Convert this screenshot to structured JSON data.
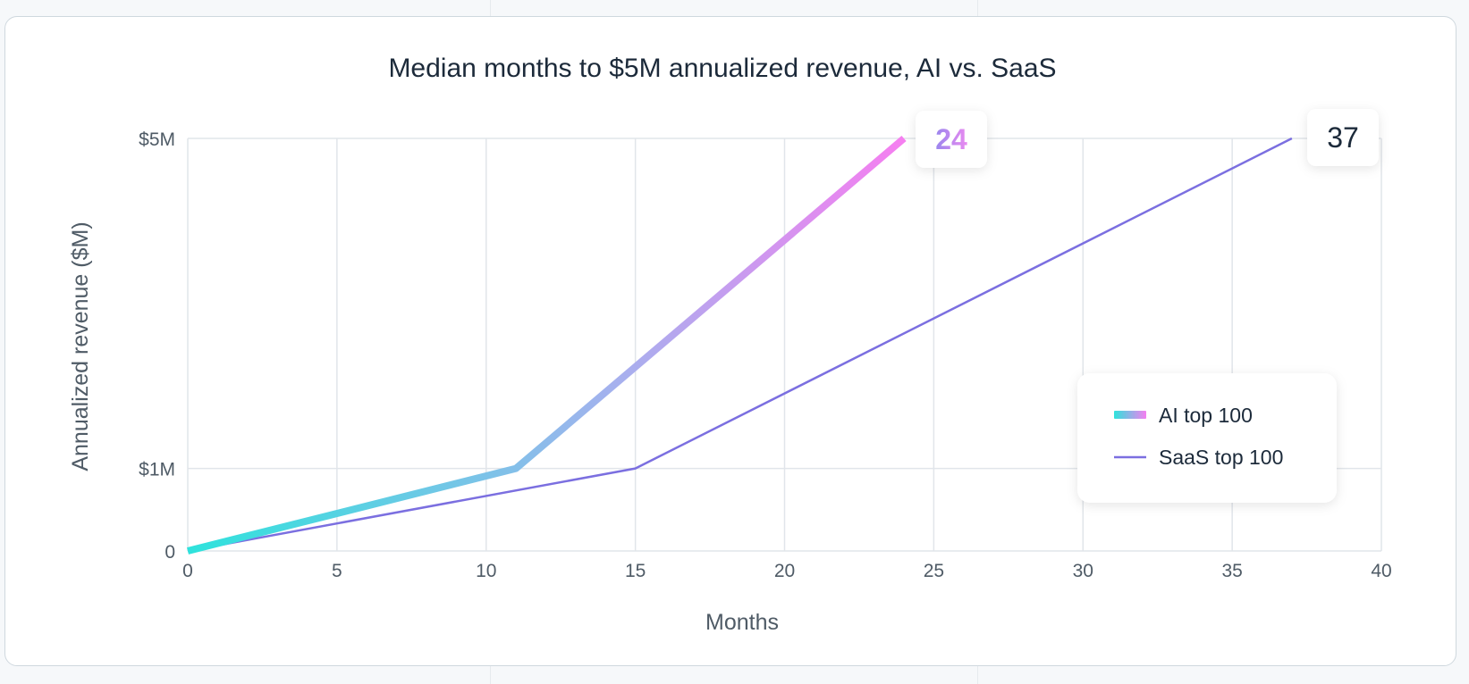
{
  "chart_data": {
    "type": "line",
    "title": "Median months to $5M annualized revenue, AI vs. SaaS",
    "xlabel": "Months",
    "ylabel": "Annualized revenue ($M)",
    "xlim": [
      0,
      40
    ],
    "ylim": [
      0,
      5
    ],
    "x_ticks": [
      0,
      5,
      10,
      15,
      20,
      25,
      30,
      35,
      40
    ],
    "y_ticks": [
      {
        "value": 0,
        "label": "0"
      },
      {
        "value": 1,
        "label": "$1M"
      },
      {
        "value": 5,
        "label": "$5M"
      }
    ],
    "grid": true,
    "legend_position": "lower-right",
    "series": [
      {
        "name": "AI top 100",
        "color_start": "#2ee3dc",
        "color_end": "#f57ff0",
        "x": [
          0,
          11,
          24
        ],
        "y": [
          0,
          1,
          5
        ],
        "end_label": "24"
      },
      {
        "name": "SaaS top 100",
        "color": "#7b6fe0",
        "x": [
          0,
          15,
          37
        ],
        "y": [
          0,
          1,
          5
        ],
        "end_label": "37"
      }
    ]
  }
}
